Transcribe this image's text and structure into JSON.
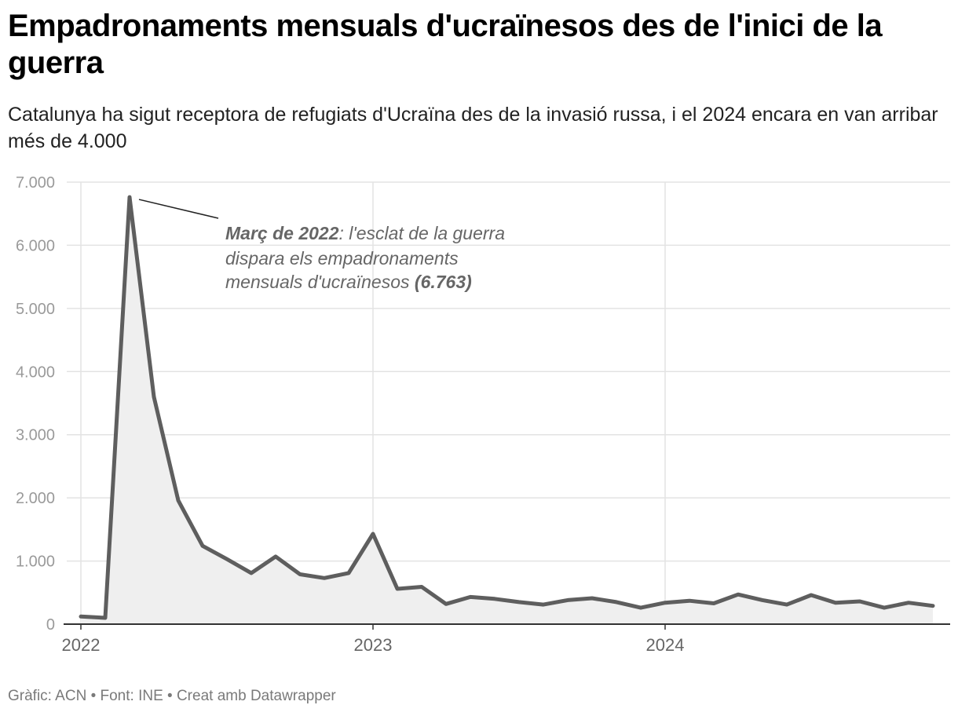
{
  "header": {
    "title": "Empadronaments mensuals d'ucraïnesos des de l'inici de la guerra",
    "subtitle": "Catalunya ha sigut receptora de refugiats d'Ucraïna des de la invasió russa, i el 2024 encara en van arribar més de 4.000"
  },
  "footer": {
    "credit": "Gràfic: ACN • Font: INE • Creat amb Datawrapper"
  },
  "colors": {
    "line": "#5e5e5e",
    "area": "#efefef",
    "grid": "#e3e3e3",
    "axis": "#333333"
  },
  "chart_data": {
    "type": "area",
    "title": "Empadronaments mensuals d'ucraïnesos des de l'inici de la guerra",
    "xlabel": "",
    "ylabel": "",
    "ylim": [
      0,
      7000
    ],
    "grid": true,
    "y_ticks": [
      {
        "value": 0,
        "label": "0"
      },
      {
        "value": 1000,
        "label": "1.000"
      },
      {
        "value": 2000,
        "label": "2.000"
      },
      {
        "value": 3000,
        "label": "3.000"
      },
      {
        "value": 4000,
        "label": "4.000"
      },
      {
        "value": 5000,
        "label": "5.000"
      },
      {
        "value": 6000,
        "label": "6.000"
      },
      {
        "value": 7000,
        "label": "7.000"
      }
    ],
    "x_ticks": [
      {
        "index": 0,
        "label": "2022"
      },
      {
        "index": 12,
        "label": "2023"
      },
      {
        "index": 24,
        "label": "2024"
      }
    ],
    "series": [
      {
        "name": "Empadronaments mensuals",
        "x": [
          "2022-01",
          "2022-02",
          "2022-03",
          "2022-04",
          "2022-05",
          "2022-06",
          "2022-07",
          "2022-08",
          "2022-09",
          "2022-10",
          "2022-11",
          "2022-12",
          "2023-01",
          "2023-02",
          "2023-03",
          "2023-04",
          "2023-05",
          "2023-06",
          "2023-07",
          "2023-08",
          "2023-09",
          "2023-10",
          "2023-11",
          "2023-12",
          "2024-01",
          "2024-02",
          "2024-03",
          "2024-04",
          "2024-05",
          "2024-06",
          "2024-07",
          "2024-08",
          "2024-09",
          "2024-10",
          "2024-11",
          "2024-12"
        ],
        "values": [
          120,
          100,
          6763,
          3600,
          1960,
          1240,
          1030,
          810,
          1070,
          790,
          730,
          810,
          1430,
          560,
          590,
          320,
          430,
          400,
          350,
          310,
          380,
          410,
          350,
          260,
          340,
          370,
          330,
          470,
          380,
          310,
          460,
          340,
          360,
          260,
          340,
          290
        ]
      }
    ],
    "annotation": {
      "index": 2,
      "value": 6763,
      "bold_lead": "Març de 2022",
      "line1_rest": ": l'esclat de la guerra",
      "line2": "dispara els empadronaments",
      "line3_lead": "mensuals d'ucraïnesos ",
      "line3_bold": "(6.763)"
    }
  }
}
